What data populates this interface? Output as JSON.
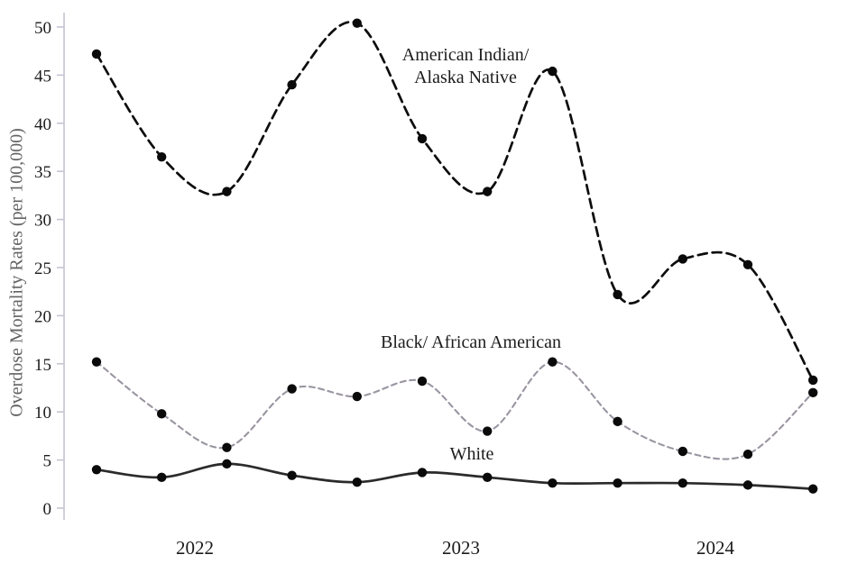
{
  "chart_data": {
    "type": "line",
    "title": "",
    "xlabel": "",
    "ylabel": "Overdose Mortality Rates (per 100,000)",
    "ylim": [
      0,
      50
    ],
    "y_ticks": [
      0,
      5,
      10,
      15,
      20,
      25,
      30,
      35,
      40,
      45,
      50
    ],
    "x_tick_labels": [
      "2022",
      "2023",
      "2024"
    ],
    "points_per_series": 12,
    "grid": false,
    "smooth": true,
    "legend_position": "inline-annotations",
    "marker": {
      "shape": "circle",
      "color": "#0a0a0a"
    },
    "series": [
      {
        "name": "American Indian/ Alaska Native",
        "annotation": "American Indian/\nAlaska Native",
        "line_style": "dashed-long",
        "color": "#0d0d0d",
        "values": [
          47.2,
          36.5,
          32.9,
          44.0,
          50.4,
          38.4,
          32.9,
          45.4,
          22.2,
          25.9,
          25.3,
          13.3
        ]
      },
      {
        "name": "Black/ African American",
        "annotation": "Black/ African American",
        "line_style": "dashed-short",
        "color": "#9a95a1",
        "values": [
          15.2,
          9.8,
          6.3,
          12.4,
          11.6,
          13.2,
          8.0,
          15.2,
          9.0,
          5.9,
          5.6,
          12.0
        ]
      },
      {
        "name": "White",
        "annotation": "White",
        "line_style": "solid",
        "color": "#2b2b2b",
        "values": [
          4.0,
          3.2,
          4.6,
          3.4,
          2.7,
          3.7,
          3.2,
          2.6,
          2.6,
          2.6,
          2.4,
          2.0
        ]
      }
    ],
    "axis_style": {
      "axis_line_color": "#c7c3d2",
      "tick_label_color": "#1c1c1c",
      "x_label_color": "#1c1c1c"
    }
  }
}
